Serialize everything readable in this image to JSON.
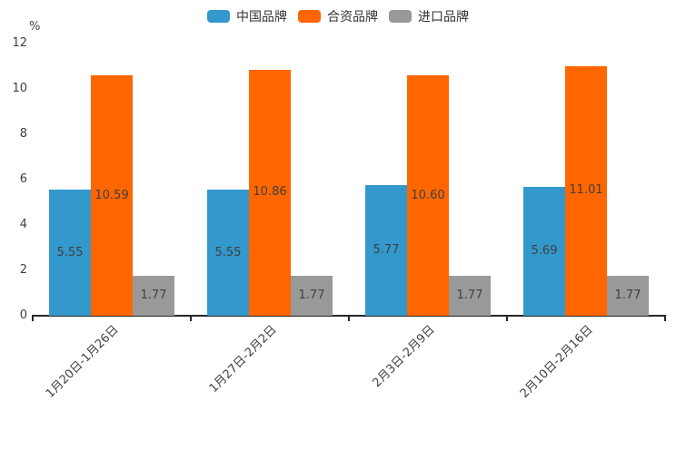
{
  "chart_data": {
    "type": "bar",
    "title": "",
    "ylabel": "%",
    "xlabel": "",
    "ylim": [
      0,
      12
    ],
    "yticks": [
      0,
      2,
      4,
      6,
      8,
      10,
      12
    ],
    "grid": false,
    "legend_position": "top",
    "categories": [
      "1月20日-1月26日",
      "1月27日-2月2日",
      "2月3日-2月9日",
      "2月10日-2月16日"
    ],
    "series": [
      {
        "name": "中国品牌",
        "color": "#3398CC",
        "values": [
          5.55,
          5.55,
          5.77,
          5.69
        ]
      },
      {
        "name": "合资品牌",
        "color": "#FF6600",
        "values": [
          10.59,
          10.86,
          10.6,
          11.01
        ]
      },
      {
        "name": "进口品牌",
        "color": "#999999",
        "values": [
          1.77,
          1.77,
          1.77,
          1.77
        ]
      }
    ],
    "value_label_decimals": 2
  }
}
